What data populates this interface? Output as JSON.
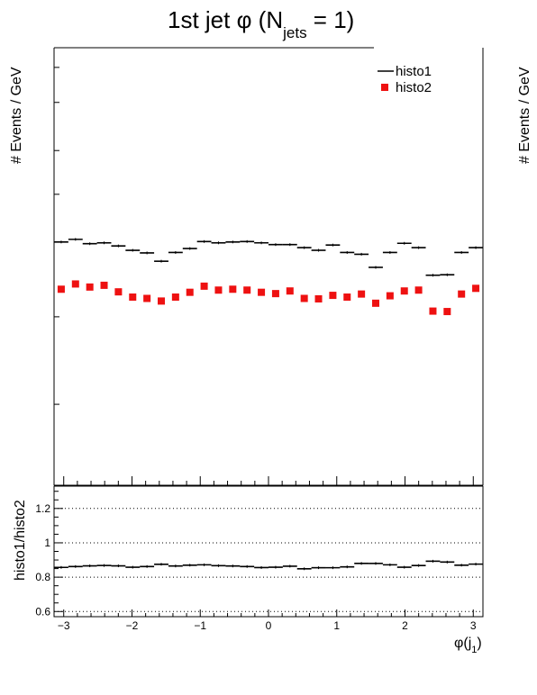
{
  "figure": {
    "title": "1st jet φ (N",
    "title_sub": "jets",
    "title_tail": " = 1)",
    "upper_ylabel": "# Events / GeV",
    "right_ylabel": "# Events / GeV",
    "lower_ylabel": "histo1/histo2",
    "xlabel": "φ(j",
    "xlabel_sub": "1",
    "xlabel_tail": ")"
  },
  "chart_data": [
    {
      "type": "scatter",
      "panel": "upper",
      "xlim": [
        -3.1416,
        3.1416
      ],
      "ylim": [
        0,
        1
      ],
      "y_tick_labels_shown": false,
      "legend_placement": "top-right",
      "series": [
        {
          "name": "histo1",
          "style": "horizontal-bin-marker",
          "color": "#000000",
          "x": [
            -3.0369,
            -2.8274,
            -2.618,
            -2.4086,
            -2.1991,
            -1.9897,
            -1.7802,
            -1.5708,
            -1.3614,
            -1.1519,
            -0.9425,
            -0.733,
            -0.5236,
            -0.3142,
            -0.1047,
            0.1047,
            0.3142,
            0.5236,
            0.733,
            0.9425,
            1.1519,
            1.3614,
            1.5708,
            1.7802,
            1.9897,
            2.1991,
            2.4086,
            2.618,
            2.8274,
            3.0369
          ],
          "y": [
            0.556,
            0.562,
            0.552,
            0.554,
            0.547,
            0.537,
            0.531,
            0.512,
            0.532,
            0.541,
            0.557,
            0.554,
            0.556,
            0.557,
            0.554,
            0.55,
            0.55,
            0.543,
            0.537,
            0.549,
            0.532,
            0.528,
            0.498,
            0.532,
            0.553,
            0.543,
            0.48,
            0.481,
            0.532,
            0.543
          ]
        },
        {
          "name": "histo2",
          "style": "square-marker",
          "color": "#ee1111",
          "x": [
            -3.0369,
            -2.8274,
            -2.618,
            -2.4086,
            -2.1991,
            -1.9897,
            -1.7802,
            -1.5708,
            -1.3614,
            -1.1519,
            -0.9425,
            -0.733,
            -0.5236,
            -0.3142,
            -0.1047,
            0.1047,
            0.3142,
            0.5236,
            0.733,
            0.9425,
            1.1519,
            1.3614,
            1.5708,
            1.7802,
            1.9897,
            2.1991,
            2.4086,
            2.618,
            2.8274,
            3.0369
          ],
          "y": [
            0.448,
            0.46,
            0.453,
            0.457,
            0.442,
            0.43,
            0.427,
            0.421,
            0.43,
            0.441,
            0.455,
            0.446,
            0.448,
            0.446,
            0.441,
            0.438,
            0.444,
            0.427,
            0.426,
            0.434,
            0.43,
            0.437,
            0.416,
            0.433,
            0.444,
            0.446,
            0.398,
            0.397,
            0.437,
            0.45
          ]
        }
      ]
    },
    {
      "type": "scatter",
      "panel": "lower",
      "xlim": [
        -3.1416,
        3.1416
      ],
      "ylim": [
        0.57,
        1.33
      ],
      "grid": "horizontal dotted at 0.6, 0.8, 1, 1.2",
      "x_tick_labels": [
        "−3",
        "−2",
        "−1",
        "0",
        "1",
        "2",
        "3"
      ],
      "x_ticks": [
        -3,
        -2,
        -1,
        0,
        1,
        2,
        3
      ],
      "y_tick_labels": [
        "0.6",
        "0.8",
        "1",
        "1.2"
      ],
      "y_ticks": [
        0.6,
        0.8,
        1.0,
        1.2
      ],
      "series": [
        {
          "name": "histo1/histo2",
          "style": "horizontal-bin-marker",
          "color": "#000000",
          "x": [
            -3.0369,
            -2.8274,
            -2.618,
            -2.4086,
            -2.1991,
            -1.9897,
            -1.7802,
            -1.5708,
            -1.3614,
            -1.1519,
            -0.9425,
            -0.733,
            -0.5236,
            -0.3142,
            -0.1047,
            0.1047,
            0.3142,
            0.5236,
            0.733,
            0.9425,
            1.1519,
            1.3614,
            1.5708,
            1.7802,
            1.9897,
            2.1991,
            2.4086,
            2.618,
            2.8274,
            3.0369
          ],
          "y": [
            0.857,
            0.862,
            0.866,
            0.868,
            0.866,
            0.858,
            0.862,
            0.875,
            0.865,
            0.87,
            0.872,
            0.867,
            0.865,
            0.862,
            0.856,
            0.858,
            0.864,
            0.849,
            0.855,
            0.855,
            0.86,
            0.88,
            0.88,
            0.872,
            0.858,
            0.868,
            0.893,
            0.888,
            0.87,
            0.876
          ]
        }
      ]
    }
  ]
}
